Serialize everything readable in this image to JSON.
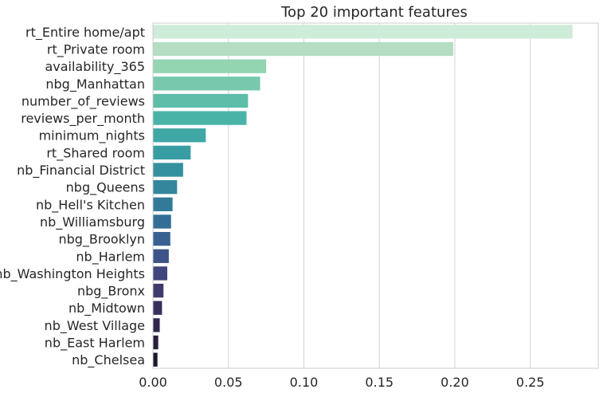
{
  "chart_data": {
    "type": "bar",
    "orientation": "horizontal",
    "title": "Top 20 important features",
    "xlabel": "",
    "ylabel": "",
    "xlim": [
      0,
      0.295
    ],
    "xticks": [
      "0.00",
      "0.05",
      "0.10",
      "0.15",
      "0.20",
      "0.25"
    ],
    "xtick_values": [
      0,
      0.05,
      0.1,
      0.15,
      0.2,
      0.25
    ],
    "grid": "vertical",
    "categories": [
      "rt_Entire home/apt",
      "rt_Private room",
      "availability_365",
      "nbg_Manhattan",
      "number_of_reviews",
      "reviews_per_month",
      "minimum_nights",
      "rt_Shared room",
      "nb_Financial District",
      "nbg_Queens",
      "nb_Hell's Kitchen",
      "nb_Williamsburg",
      "nbg_Brooklyn",
      "nb_Harlem",
      "nb_Washington Heights",
      "nbg_Bronx",
      "nb_Midtown",
      "nb_West Village",
      "nb_East Harlem",
      "nb_Chelsea"
    ],
    "values": [
      0.278,
      0.199,
      0.075,
      0.071,
      0.063,
      0.062,
      0.035,
      0.025,
      0.02,
      0.016,
      0.013,
      0.012,
      0.0115,
      0.0105,
      0.0095,
      0.007,
      0.006,
      0.0045,
      0.0035,
      0.003
    ],
    "colors": [
      "#cfebd9",
      "#b4ddc3",
      "#93d4b1",
      "#77c8ad",
      "#5ebda9",
      "#4ab3a8",
      "#3fa8a5",
      "#389da2",
      "#35919f",
      "#33869c",
      "#337a99",
      "#346d96",
      "#386091",
      "#3d5389",
      "#40457c",
      "#3f3a6d",
      "#392f5d",
      "#32264c",
      "#291e3b",
      "#20162b"
    ]
  }
}
